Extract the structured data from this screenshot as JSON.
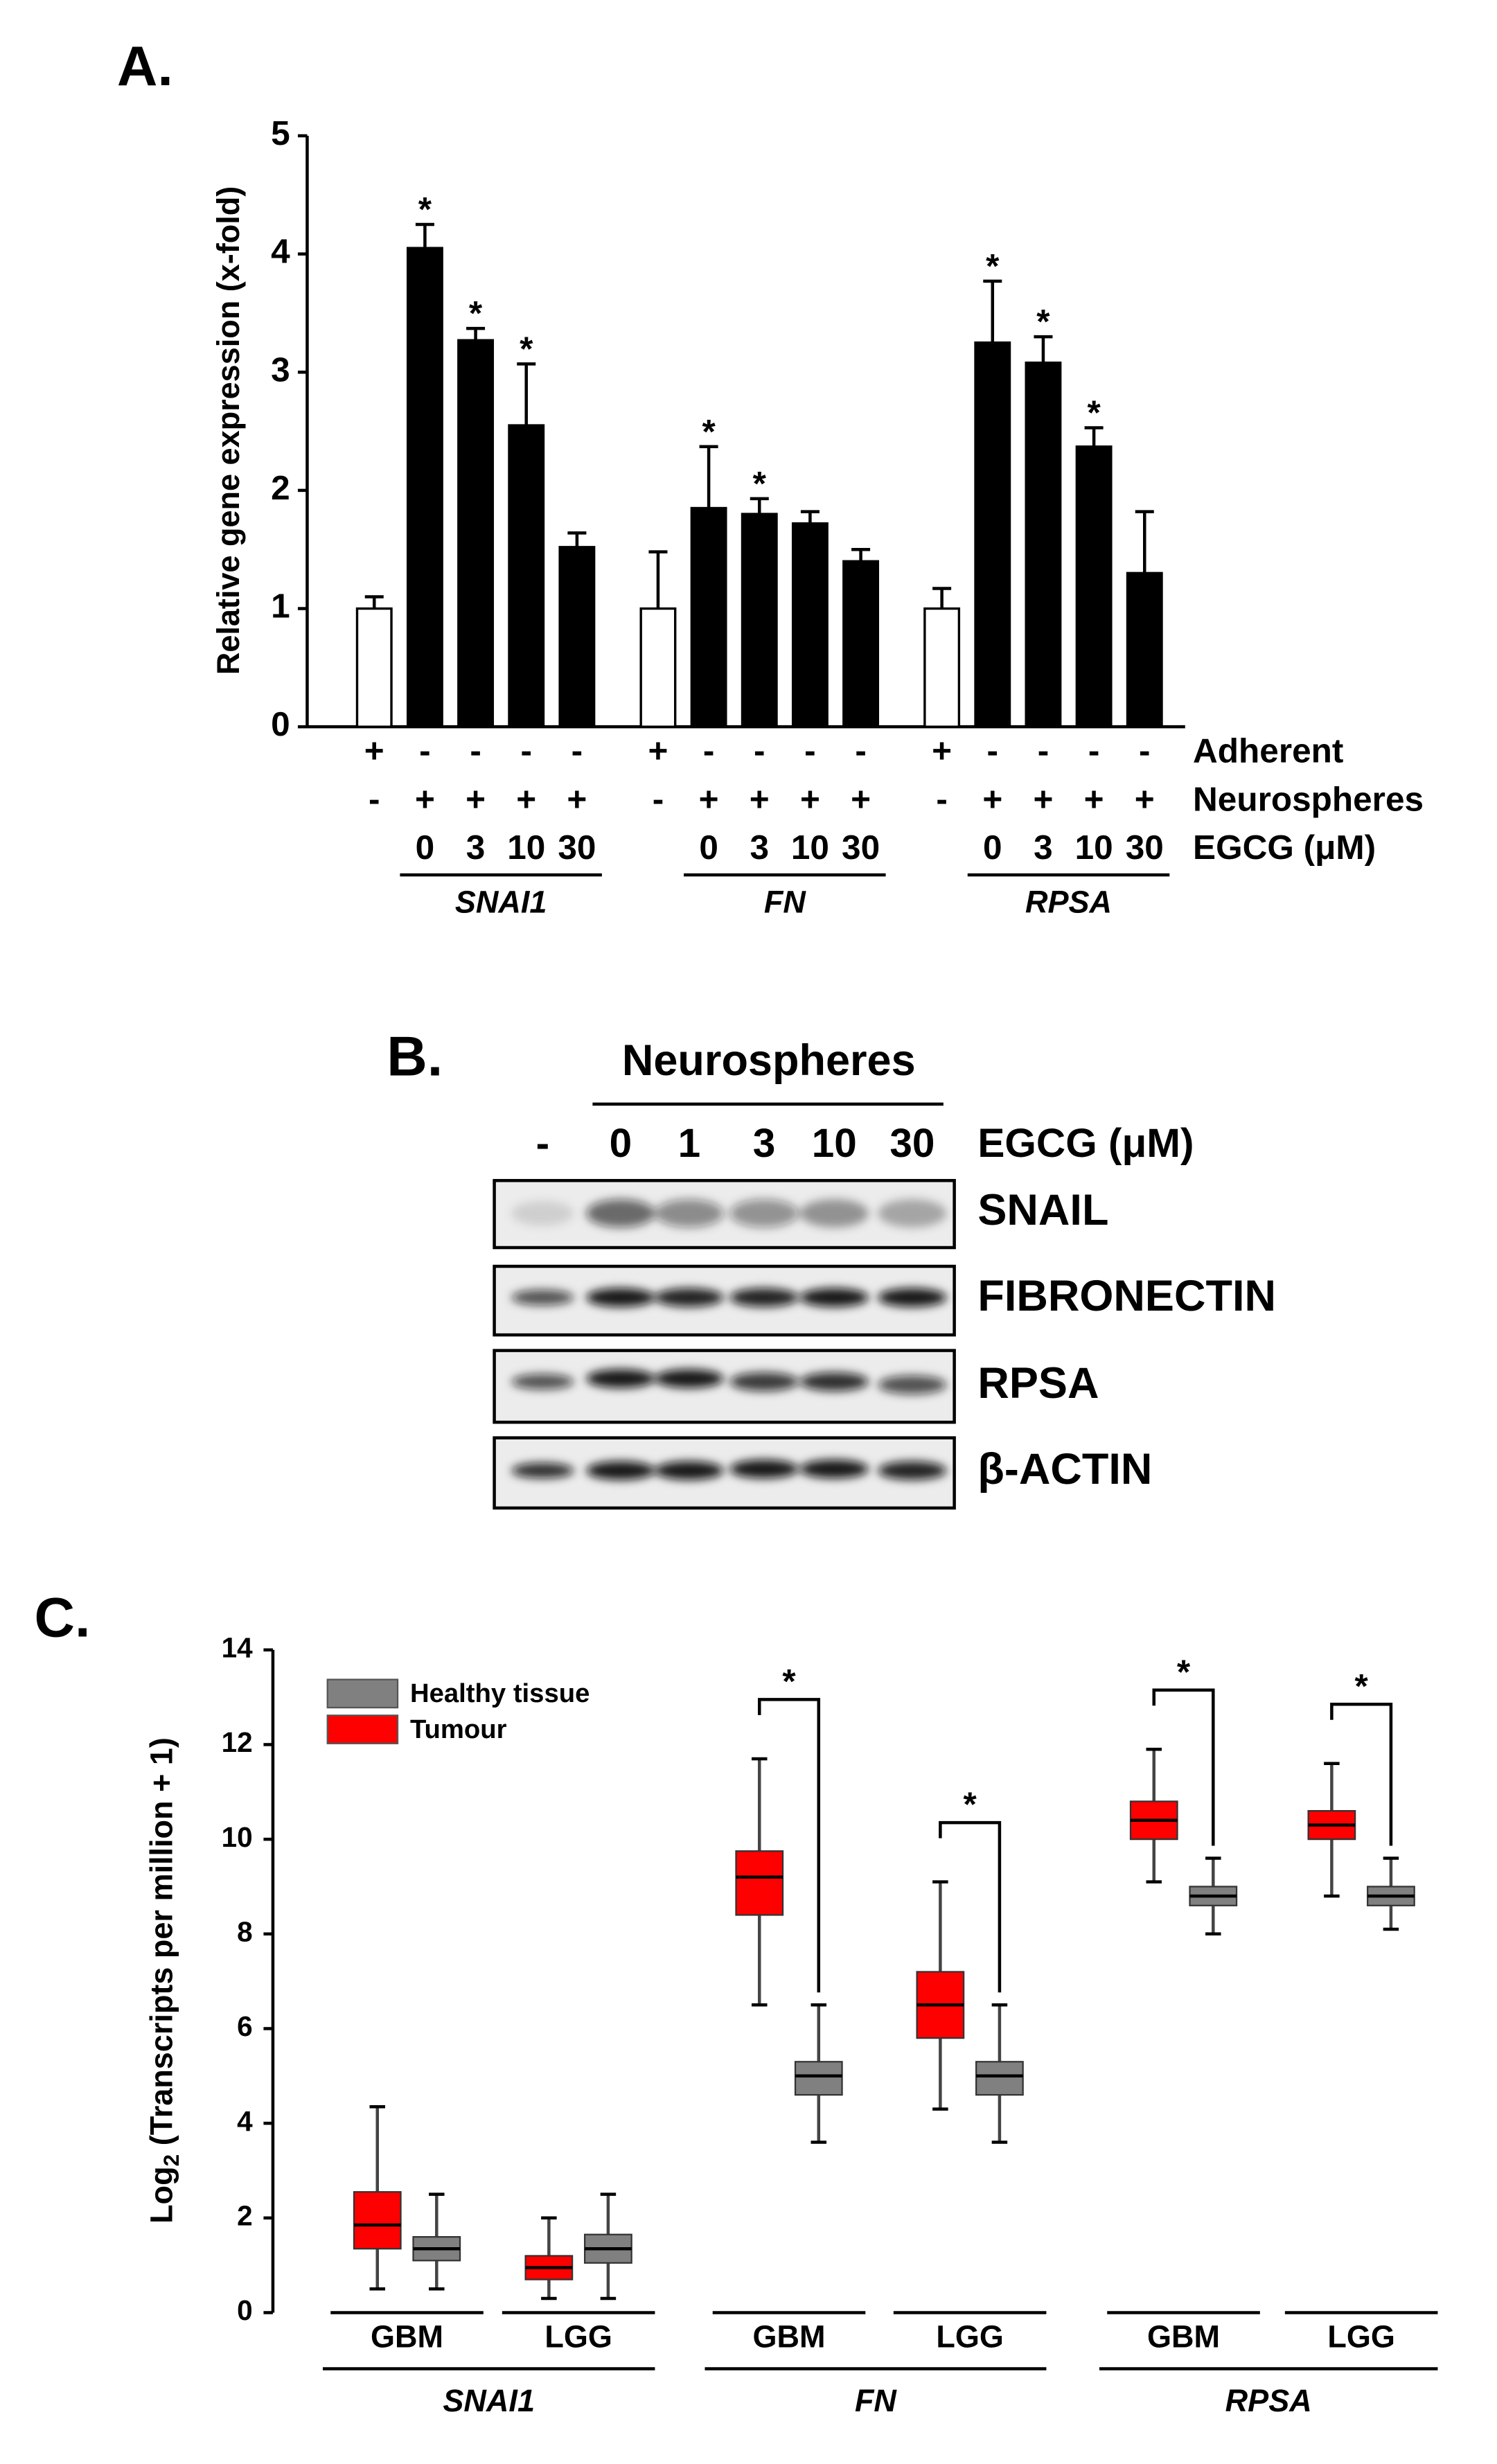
{
  "chart_data": [
    {
      "type": "bar",
      "panel_label": "A.",
      "ylabel": "Relative gene expression (x-fold)",
      "ylim": [
        0,
        5
      ],
      "yticks": [
        0,
        1,
        2,
        3,
        4,
        5
      ],
      "row_labels": [
        "Adherent",
        "Neurospheres",
        "EGCG (μM)"
      ],
      "groups": [
        {
          "name": "SNAI1",
          "values": [
            1,
            4.05,
            3.27,
            2.55,
            1.52
          ],
          "errors": [
            0.1,
            0.2,
            0.1,
            0.52,
            0.12
          ],
          "colors": [
            "#ffffff",
            "#000000",
            "#000000",
            "#000000",
            "#000000"
          ],
          "adherent": [
            "+",
            "-",
            "-",
            "-",
            "-"
          ],
          "neurospheres": [
            "-",
            "+",
            "+",
            "+",
            "+"
          ],
          "egcg": [
            null,
            "0",
            "3",
            "10",
            "30"
          ],
          "significance": [
            null,
            "*",
            "*",
            "*",
            null
          ]
        },
        {
          "name": "FN",
          "values": [
            1,
            1.85,
            1.8,
            1.72,
            1.4
          ],
          "errors": [
            0.48,
            0.52,
            0.13,
            0.1,
            0.1
          ],
          "colors": [
            "#ffffff",
            "#000000",
            "#000000",
            "#000000",
            "#000000"
          ],
          "adherent": [
            "+",
            "-",
            "-",
            "-",
            "-"
          ],
          "neurospheres": [
            "-",
            "+",
            "+",
            "+",
            "+"
          ],
          "egcg": [
            null,
            "0",
            "3",
            "10",
            "30"
          ],
          "significance": [
            null,
            "*",
            "*",
            null,
            null
          ]
        },
        {
          "name": "RPSA",
          "values": [
            1,
            3.25,
            3.08,
            2.37,
            1.3
          ],
          "errors": [
            0.17,
            0.52,
            0.22,
            0.16,
            0.52
          ],
          "colors": [
            "#ffffff",
            "#000000",
            "#000000",
            "#000000",
            "#000000"
          ],
          "adherent": [
            "+",
            "-",
            "-",
            "-",
            "-"
          ],
          "neurospheres": [
            "-",
            "+",
            "+",
            "+",
            "+"
          ],
          "egcg": [
            null,
            "0",
            "3",
            "10",
            "30"
          ],
          "significance": [
            null,
            "*",
            "*",
            "*",
            null
          ]
        }
      ]
    },
    {
      "type": "box",
      "panel_label": "C.",
      "ylabel_parts": [
        "Log",
        "2",
        " (Transcripts per million + 1)"
      ],
      "ylim": [
        0,
        14
      ],
      "yticks": [
        0,
        2,
        4,
        6,
        8,
        10,
        12,
        14
      ],
      "legend": "upper left",
      "series": [
        {
          "name": "Healthy tissue",
          "color": "#808080"
        },
        {
          "name": "Tumour",
          "color": "#ff0000"
        }
      ],
      "groups": [
        {
          "name": "SNAI1",
          "subgroups": [
            {
              "name": "GBM",
              "significance": null,
              "boxes": [
                {
                  "whisker_low": 0.5,
                  "q1": 1.1,
                  "median": 1.35,
                  "q3": 1.6,
                  "whisker_high": 2.5
                },
                {
                  "whisker_low": 0.5,
                  "q1": 1.35,
                  "median": 1.85,
                  "q3": 2.55,
                  "whisker_high": 4.35
                }
              ]
            },
            {
              "name": "LGG",
              "significance": null,
              "boxes": [
                {
                  "whisker_low": 0.3,
                  "q1": 1.05,
                  "median": 1.35,
                  "q3": 1.65,
                  "whisker_high": 2.5
                },
                {
                  "whisker_low": 0.3,
                  "q1": 0.7,
                  "median": 0.95,
                  "q3": 1.2,
                  "whisker_high": 2.0
                }
              ]
            }
          ]
        },
        {
          "name": "FN",
          "subgroups": [
            {
              "name": "GBM",
              "significance": "*",
              "boxes": [
                {
                  "whisker_low": 3.6,
                  "q1": 4.6,
                  "median": 5.0,
                  "q3": 5.3,
                  "whisker_high": 6.5
                },
                {
                  "whisker_low": 6.5,
                  "q1": 8.4,
                  "median": 9.2,
                  "q3": 9.75,
                  "whisker_high": 11.7
                }
              ]
            },
            {
              "name": "LGG",
              "significance": "*",
              "boxes": [
                {
                  "whisker_low": 3.6,
                  "q1": 4.6,
                  "median": 5.0,
                  "q3": 5.3,
                  "whisker_high": 6.5
                },
                {
                  "whisker_low": 4.3,
                  "q1": 5.8,
                  "median": 6.5,
                  "q3": 7.2,
                  "whisker_high": 9.1
                }
              ]
            }
          ]
        },
        {
          "name": "RPSA",
          "subgroups": [
            {
              "name": "GBM",
              "significance": "*",
              "boxes": [
                {
                  "whisker_low": 8.0,
                  "q1": 8.6,
                  "median": 8.8,
                  "q3": 9.0,
                  "whisker_high": 9.6
                },
                {
                  "whisker_low": 9.1,
                  "q1": 10.0,
                  "median": 10.4,
                  "q3": 10.8,
                  "whisker_high": 11.9
                }
              ]
            },
            {
              "name": "LGG",
              "significance": "*",
              "boxes": [
                {
                  "whisker_low": 8.1,
                  "q1": 8.6,
                  "median": 8.8,
                  "q3": 9.0,
                  "whisker_high": 9.6
                },
                {
                  "whisker_low": 8.8,
                  "q1": 10.0,
                  "median": 10.3,
                  "q3": 10.6,
                  "whisker_high": 11.6
                }
              ]
            }
          ]
        }
      ]
    }
  ],
  "blot": {
    "panel_label": "B.",
    "header": "Neurospheres",
    "lanes": [
      "-",
      "0",
      "1",
      "3",
      "10",
      "30"
    ],
    "condition": "EGCG (μM)",
    "rows": [
      "SNAIL",
      "FIBRONECTIN",
      "RPSA",
      "β-ACTIN"
    ]
  }
}
